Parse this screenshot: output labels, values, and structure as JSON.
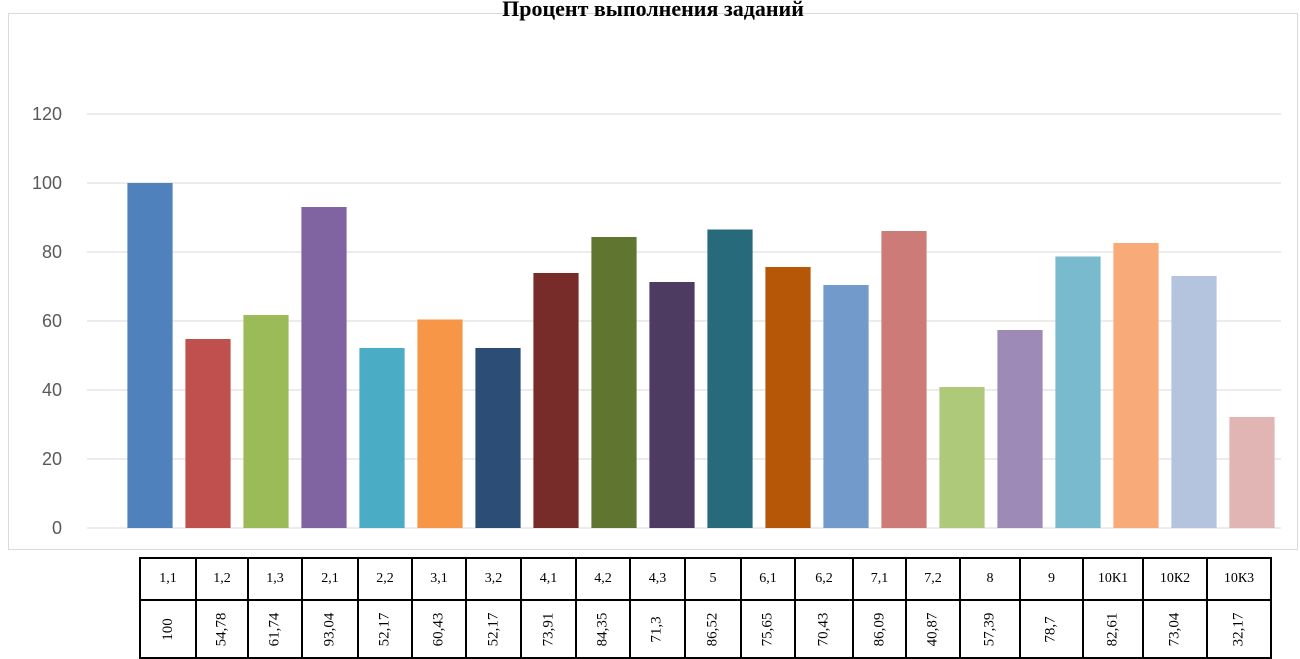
{
  "chart_data": {
    "type": "bar",
    "title": "Процент выполнения заданий",
    "xlabel": "",
    "ylabel": "",
    "ylim": [
      0,
      120
    ],
    "yticks": [
      0,
      20,
      40,
      60,
      80,
      100,
      120
    ],
    "grid": true,
    "legend": "table-below",
    "categories": [
      "1,1",
      "1,2",
      "1,3",
      "2,1",
      "2,2",
      "3,1",
      "3,2",
      "4,1",
      "4,2",
      "4,3",
      "5",
      "6,1",
      "6,2",
      "7,1",
      "7,2",
      "8",
      "9",
      "10К1",
      "10К2",
      "10К3"
    ],
    "values": [
      100,
      54.78,
      61.74,
      93.04,
      52.17,
      60.43,
      52.17,
      73.91,
      84.35,
      71.3,
      86.52,
      75.65,
      70.43,
      86.09,
      40.87,
      57.39,
      78.7,
      82.61,
      73.04,
      32.17
    ],
    "value_labels": [
      "100",
      "54,78",
      "61,74",
      "93,04",
      "52,17",
      "60,43",
      "52,17",
      "73,91",
      "84,35",
      "71,3",
      "86,52",
      "75,65",
      "70,43",
      "86,09",
      "40,87",
      "57,39",
      "78,7",
      "82,61",
      "73,04",
      "32,17"
    ],
    "colors": [
      "#4f81bd",
      "#c0504d",
      "#9bbb59",
      "#8064a2",
      "#4bacc6",
      "#f79646",
      "#2c4d75",
      "#772c2a",
      "#5f7530",
      "#4d3b62",
      "#276a7c",
      "#b65708",
      "#729aca",
      "#cd7b79",
      "#afc97a",
      "#9d8ab7",
      "#79bacf",
      "#f8aa79",
      "#b4c3de",
      "#e0b5b4"
    ]
  }
}
